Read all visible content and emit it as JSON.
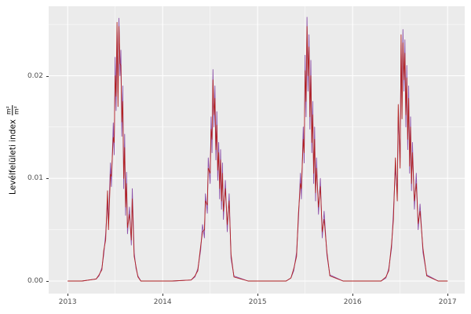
{
  "chart_data": {
    "type": "line",
    "title": "",
    "xlabel": "",
    "ylabel": "Levélfelületi index m²/m²",
    "ylabel_text": "Levélfelületi index",
    "ylabel_fraction": {
      "numerator": "m²",
      "denominator": "m²"
    },
    "x_ticks": {
      "values": [
        2013,
        2014,
        2015,
        2016,
        2017
      ],
      "labels": [
        "2013",
        "2014",
        "2015",
        "2016",
        "2017"
      ]
    },
    "y_ticks": {
      "values": [
        0,
        0.01,
        0.02
      ],
      "labels": [
        "0.00",
        "0.01",
        "0.02"
      ]
    },
    "x_minor": [
      2013.5,
      2014.5,
      2015.5,
      2016.5
    ],
    "y_minor": [
      0.005,
      0.015,
      0.025
    ],
    "xlim": [
      2012.8,
      2017.18
    ],
    "ylim": [
      0,
      0.026
    ],
    "grid": true,
    "legend": "none",
    "panel_background": "#EBEBEB",
    "grid_color": "#FFFFFF",
    "tick_label_color": "#4D4D4D",
    "x": [
      2013.0,
      2013.15,
      2013.3,
      2013.33,
      2013.36,
      2013.38,
      2013.4,
      2013.42,
      2013.43,
      2013.45,
      2013.46,
      2013.48,
      2013.49,
      2013.5,
      2013.51,
      2013.52,
      2013.53,
      2013.54,
      2013.55,
      2013.56,
      2013.57,
      2013.58,
      2013.59,
      2013.6,
      2013.61,
      2013.62,
      2013.63,
      2013.65,
      2013.67,
      2013.68,
      2013.7,
      2013.72,
      2013.74,
      2013.77,
      2013.9,
      2014.1,
      2014.3,
      2014.34,
      2014.37,
      2014.4,
      2014.42,
      2014.44,
      2014.45,
      2014.47,
      2014.48,
      2014.5,
      2014.51,
      2014.52,
      2014.53,
      2014.54,
      2014.55,
      2014.56,
      2014.57,
      2014.58,
      2014.59,
      2014.6,
      2014.61,
      2014.62,
      2014.63,
      2014.64,
      2014.66,
      2014.68,
      2014.7,
      2014.72,
      2014.75,
      2014.9,
      2015.1,
      2015.3,
      2015.35,
      2015.38,
      2015.41,
      2015.43,
      2015.45,
      2015.46,
      2015.48,
      2015.49,
      2015.5,
      2015.51,
      2015.52,
      2015.53,
      2015.54,
      2015.55,
      2015.56,
      2015.57,
      2015.58,
      2015.59,
      2015.6,
      2015.61,
      2015.62,
      2015.64,
      2015.66,
      2015.68,
      2015.7,
      2015.73,
      2015.76,
      2015.9,
      2016.1,
      2016.3,
      2016.35,
      2016.38,
      2016.41,
      2016.43,
      2016.45,
      2016.47,
      2016.48,
      2016.5,
      2016.51,
      2016.52,
      2016.53,
      2016.54,
      2016.55,
      2016.56,
      2016.57,
      2016.58,
      2016.59,
      2016.6,
      2016.61,
      2016.62,
      2016.63,
      2016.65,
      2016.67,
      2016.69,
      2016.71,
      2016.74,
      2016.78,
      2016.9,
      2017.0
    ],
    "series": [
      {
        "name": "series-purple",
        "color": "#8C4FA8",
        "values": [
          0,
          0,
          0.0002,
          0.0005,
          0.0013,
          0.0026,
          0.0046,
          0.0077,
          0.0056,
          0.0115,
          0.0092,
          0.0154,
          0.0123,
          0.0218,
          0.0166,
          0.0243,
          0.0184,
          0.0256,
          0.02,
          0.0225,
          0.0141,
          0.019,
          0.009,
          0.0143,
          0.0064,
          0.0106,
          0.0046,
          0.0072,
          0.0035,
          0.009,
          0.0028,
          0.0012,
          0.0005,
          0,
          0,
          0,
          0.0001,
          0.0004,
          0.0012,
          0.003,
          0.0055,
          0.0042,
          0.0085,
          0.0066,
          0.012,
          0.0095,
          0.016,
          0.0125,
          0.0206,
          0.015,
          0.019,
          0.0118,
          0.0165,
          0.0098,
          0.0135,
          0.008,
          0.0128,
          0.007,
          0.0115,
          0.006,
          0.0098,
          0.0048,
          0.0085,
          0.0022,
          0.0005,
          0,
          0,
          0,
          0.0003,
          0.001,
          0.0028,
          0.006,
          0.0105,
          0.008,
          0.015,
          0.0115,
          0.022,
          0.016,
          0.0257,
          0.0185,
          0.024,
          0.0148,
          0.0215,
          0.0125,
          0.0175,
          0.0095,
          0.015,
          0.0078,
          0.012,
          0.0065,
          0.01,
          0.0042,
          0.0068,
          0.0025,
          0.0006,
          0,
          0,
          0,
          0.0003,
          0.0012,
          0.0032,
          0.0068,
          0.011,
          0.0085,
          0.016,
          0.012,
          0.023,
          0.017,
          0.0245,
          0.0185,
          0.0235,
          0.015,
          0.021,
          0.0128,
          0.019,
          0.0105,
          0.016,
          0.0088,
          0.0135,
          0.007,
          0.0105,
          0.005,
          0.0075,
          0.0028,
          0.0006,
          0,
          0
        ]
      },
      {
        "name": "series-red",
        "color": "#B22222",
        "values": [
          0,
          0,
          0.0002,
          0.0006,
          0.0011,
          0.003,
          0.004,
          0.0088,
          0.005,
          0.0104,
          0.0102,
          0.014,
          0.0135,
          0.02,
          0.018,
          0.0252,
          0.017,
          0.0248,
          0.0212,
          0.021,
          0.0155,
          0.0175,
          0.01,
          0.013,
          0.0072,
          0.0095,
          0.0052,
          0.0065,
          0.004,
          0.008,
          0.0024,
          0.0014,
          0.0004,
          0,
          0,
          0,
          0.0001,
          0.0005,
          0.001,
          0.0034,
          0.0048,
          0.005,
          0.0078,
          0.0074,
          0.011,
          0.0105,
          0.0148,
          0.0138,
          0.0196,
          0.0162,
          0.0178,
          0.0128,
          0.0152,
          0.0108,
          0.0125,
          0.009,
          0.0118,
          0.0078,
          0.0105,
          0.0068,
          0.009,
          0.0055,
          0.0078,
          0.0026,
          0.0004,
          0,
          0,
          0,
          0.0003,
          0.0012,
          0.0024,
          0.0066,
          0.0095,
          0.009,
          0.0138,
          0.0125,
          0.0205,
          0.0175,
          0.0248,
          0.02,
          0.0228,
          0.016,
          0.02,
          0.0135,
          0.0162,
          0.0105,
          0.0138,
          0.0086,
          0.011,
          0.0072,
          0.0092,
          0.0048,
          0.006,
          0.0028,
          0.0005,
          0,
          0,
          0,
          0.0004,
          0.001,
          0.0036,
          0.006,
          0.012,
          0.0078,
          0.0172,
          0.011,
          0.024,
          0.0158,
          0.0232,
          0.0196,
          0.0222,
          0.0162,
          0.0198,
          0.0138,
          0.0178,
          0.0112,
          0.015,
          0.0095,
          0.0125,
          0.0078,
          0.0095,
          0.0056,
          0.0068,
          0.0032,
          0.0005,
          0,
          0
        ]
      }
    ]
  }
}
